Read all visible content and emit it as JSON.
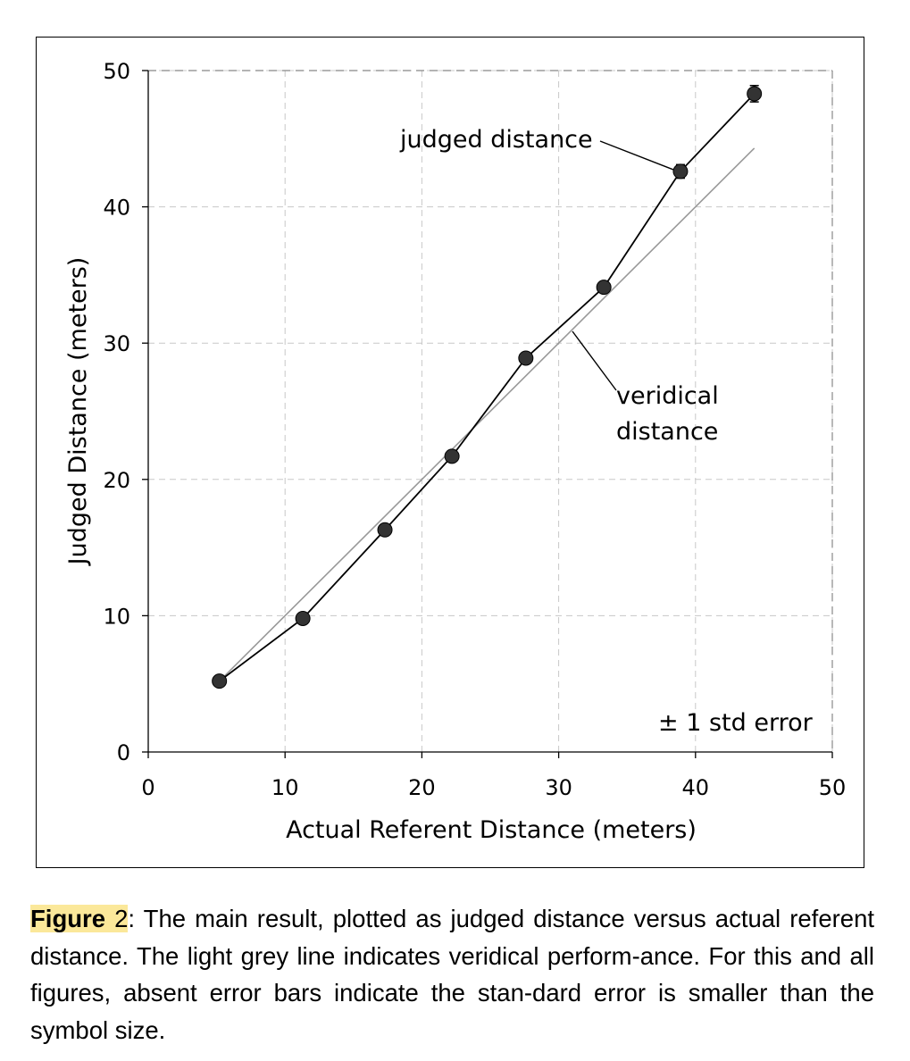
{
  "chart_data": {
    "type": "line",
    "xlabel": "Actual Referent Distance (meters)",
    "ylabel": "Judged Distance (meters)",
    "xlim": [
      0,
      50
    ],
    "ylim": [
      0,
      50
    ],
    "x_ticks": [
      "0",
      "10",
      "20",
      "30",
      "40",
      "50"
    ],
    "y_ticks": [
      "0",
      "10",
      "20",
      "30",
      "40",
      "50"
    ],
    "grid": true,
    "series": [
      {
        "name": "judged distance",
        "x": [
          5.2,
          11.3,
          17.3,
          22.2,
          27.6,
          33.3,
          38.9,
          44.3
        ],
        "y": [
          5.2,
          9.8,
          16.3,
          21.7,
          28.9,
          34.1,
          42.6,
          48.3
        ],
        "error": [
          0.2,
          0.2,
          0.2,
          0.2,
          0.3,
          0.3,
          0.5,
          0.6
        ],
        "color": "#000000",
        "marker_color": "#333333"
      },
      {
        "name": "veridical distance",
        "x": [
          5.2,
          44.3
        ],
        "y": [
          5.2,
          44.3
        ],
        "color": "#999999"
      }
    ],
    "annotations": {
      "judged_label": "judged distance",
      "veridical_label_line1": "veridical",
      "veridical_label_line2": "distance",
      "error_note": "± 1 std error"
    }
  },
  "caption": {
    "label": "Figure",
    "number": "2",
    "colon": ":",
    "text": " The main result, plotted as judged distance versus actual referent distance.  The light grey line indicates veridical perform-ance.  For this and all figures, absent error bars indicate the stan-dard error is smaller than the symbol size."
  }
}
